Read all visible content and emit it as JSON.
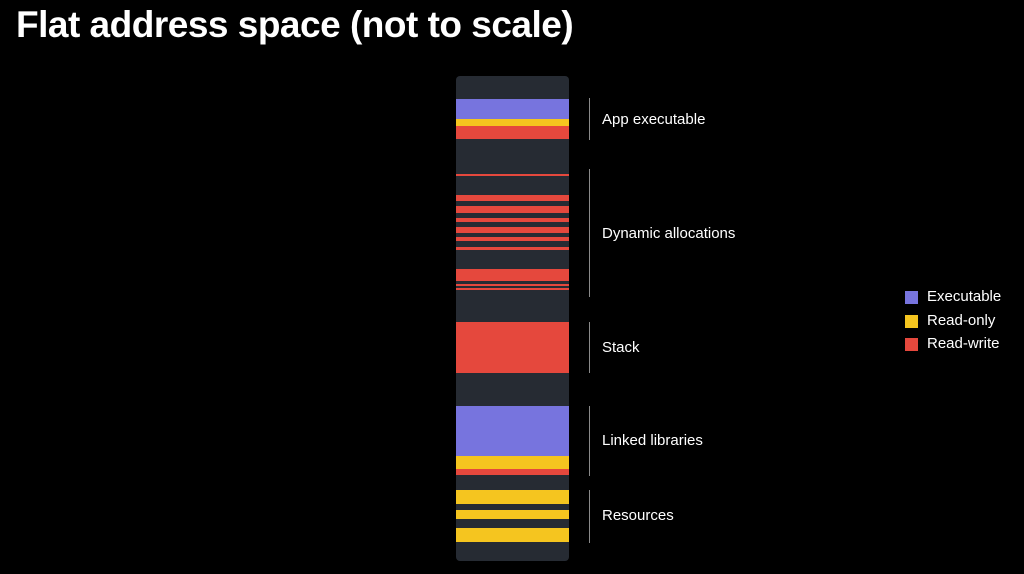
{
  "title": "Flat address space (not to scale)",
  "colors": {
    "background": "#000000",
    "free": "#262b33",
    "executable": "#7774de",
    "read_only": "#f5c51f",
    "read_write": "#e5483d",
    "bracket": "#8a8a8a",
    "text": "#ffffff"
  },
  "regions": [
    {
      "label": "App executable"
    },
    {
      "label": "Dynamic allocations"
    },
    {
      "label": "Stack"
    },
    {
      "label": "Linked libraries"
    },
    {
      "label": "Resources"
    }
  ],
  "legend": [
    {
      "label": "Executable",
      "color_key": "executable"
    },
    {
      "label": "Read-only",
      "color_key": "read_only"
    },
    {
      "label": "Read-write",
      "color_key": "read_write"
    }
  ]
}
